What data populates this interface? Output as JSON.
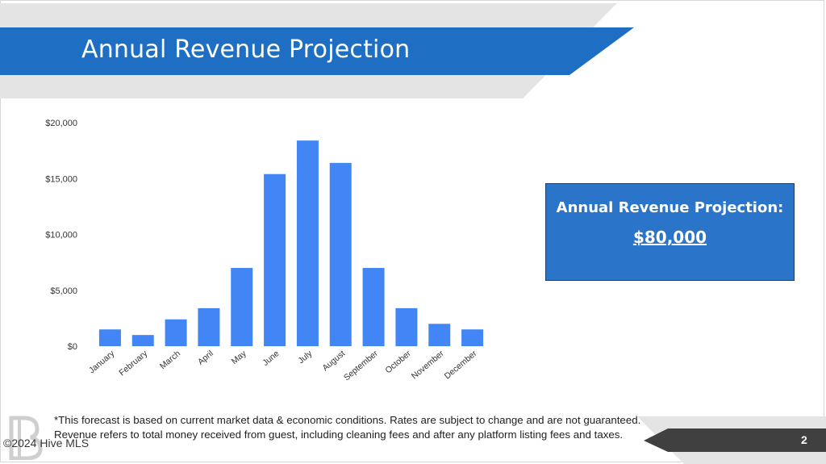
{
  "slide": {
    "title": "Annual Revenue Projection",
    "page_number": "2",
    "footnote": "*This forecast is based on current market data & economic conditions. Rates are subject to change and are not guaranteed. Revenue refers to total money received from guest, including cleaning fees and after any platform listing fees and taxes.",
    "copyright": "©2024 Hive MLS"
  },
  "summary": {
    "label": "Annual Revenue Projection:",
    "value": "$80,000"
  },
  "colors": {
    "banner_blue": "#1e6fc4",
    "bar_blue": "#4285f4",
    "box_blue": "#2a75c9",
    "deco_gray": "#e4e4e4",
    "footer_dark": "#404040"
  },
  "chart_data": {
    "type": "bar",
    "categories": [
      "January",
      "February",
      "March",
      "April",
      "May",
      "June",
      "July",
      "August",
      "September",
      "October",
      "November",
      "December"
    ],
    "values": [
      1500,
      1000,
      2400,
      3400,
      7000,
      15400,
      18400,
      16400,
      7000,
      3400,
      2000,
      1500
    ],
    "ylim": [
      0,
      20000
    ],
    "y_ticks": [
      0,
      5000,
      10000,
      15000,
      20000
    ],
    "y_tick_labels": [
      "$0",
      "$5,000",
      "$10,000",
      "$15,000",
      "$20,000"
    ],
    "grid": false,
    "legend": false
  }
}
